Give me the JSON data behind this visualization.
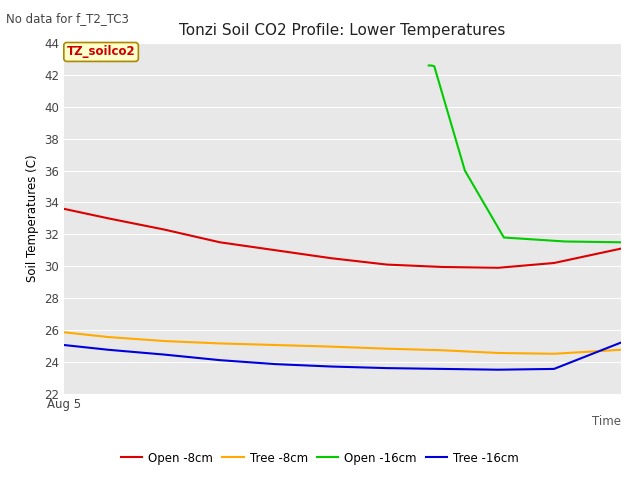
{
  "title": "Tonzi Soil CO2 Profile: Lower Temperatures",
  "subtitle": "No data for f_T2_TC3",
  "xlabel": "Time",
  "ylabel": "Soil Temperatures (C)",
  "ylim": [
    22,
    44
  ],
  "yticks": [
    22,
    24,
    26,
    28,
    30,
    32,
    34,
    36,
    38,
    40,
    42,
    44
  ],
  "x_label_start": "Aug 5",
  "annotation": "TZ_soilco2",
  "fig_bg_color": "#ffffff",
  "plot_bg_color": "#e8e8e8",
  "grid_color": "#ffffff",
  "series": {
    "open_8cm": {
      "label": "Open -8cm",
      "color": "#dd0000",
      "x": [
        0,
        0.08,
        0.18,
        0.28,
        0.38,
        0.48,
        0.58,
        0.68,
        0.78,
        0.88,
        1.0
      ],
      "y": [
        33.6,
        33.0,
        32.3,
        31.5,
        31.0,
        30.5,
        30.1,
        29.95,
        29.9,
        30.2,
        31.1
      ]
    },
    "tree_8cm": {
      "label": "Tree -8cm",
      "color": "#ffaa00",
      "x": [
        0,
        0.08,
        0.18,
        0.28,
        0.38,
        0.48,
        0.58,
        0.68,
        0.78,
        0.88,
        1.0
      ],
      "y": [
        25.85,
        25.55,
        25.3,
        25.15,
        25.05,
        24.95,
        24.82,
        24.72,
        24.55,
        24.5,
        24.75
      ]
    },
    "open_16cm": {
      "label": "Open -16cm",
      "color": "#00cc00",
      "x": [
        0.655,
        0.66,
        0.665,
        0.72,
        0.79,
        0.9,
        1.0
      ],
      "y": [
        42.6,
        42.6,
        42.55,
        36.0,
        31.8,
        31.55,
        31.5
      ]
    },
    "tree_16cm": {
      "label": "Tree -16cm",
      "color": "#0000dd",
      "x": [
        0,
        0.08,
        0.18,
        0.28,
        0.38,
        0.48,
        0.58,
        0.68,
        0.78,
        0.88,
        1.0
      ],
      "y": [
        25.05,
        24.75,
        24.45,
        24.1,
        23.85,
        23.7,
        23.6,
        23.55,
        23.5,
        23.55,
        25.2
      ]
    }
  }
}
